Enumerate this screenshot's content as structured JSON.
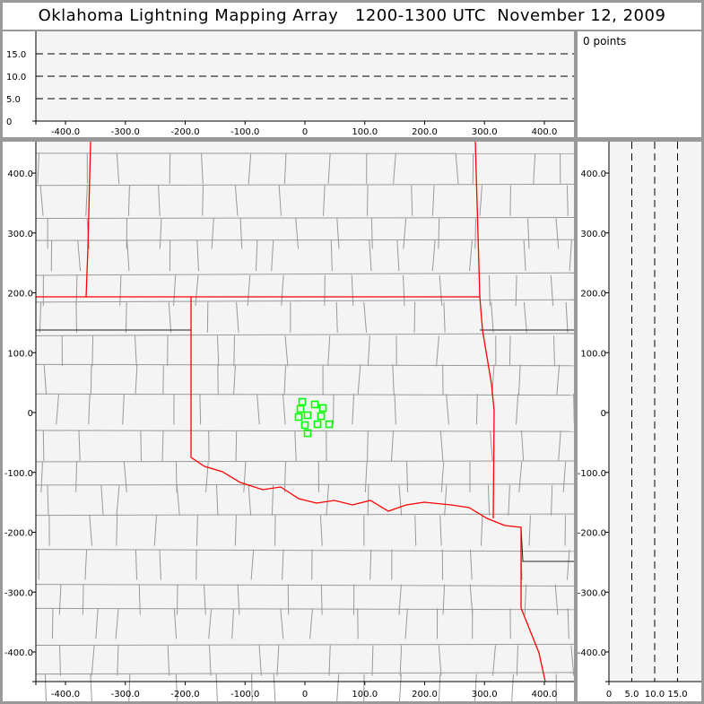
{
  "title": "Oklahoma Lightning Mapping Array   1200-1300 UTC  November 12, 2009",
  "points_label": "0 points",
  "colors": {
    "point": "#00ff00",
    "state_border": "#ff0000",
    "county": "#999999",
    "plot_bg": "#f4f4f4",
    "frame": "#999999"
  },
  "chart_data": [
    {
      "id": "alt-vs-x",
      "type": "scatter",
      "xlim": [
        -450,
        450
      ],
      "ylim": [
        0,
        20
      ],
      "xticks": [
        "-400.0",
        "-300.0",
        "-200.0",
        "-100.0",
        "0",
        "100.0",
        "200.0",
        "300.0",
        "400.0"
      ],
      "yticks": [
        "0",
        "5.0",
        "10.0",
        "15.0"
      ],
      "grid": "dashed at 5, 10, 15",
      "points": []
    },
    {
      "id": "plan-view",
      "type": "scatter",
      "xlim": [
        -450,
        450
      ],
      "ylim": [
        -450,
        450
      ],
      "xticks": [
        "-400.0",
        "-300.0",
        "-200.0",
        "-100.0",
        "0",
        "100.0",
        "200.0",
        "300.0",
        "400.0"
      ],
      "yticks": [
        "-400.0",
        "-300.0",
        "-200.0",
        "-100.0",
        "0",
        "100.0",
        "200.0",
        "300.0",
        "400.0"
      ],
      "background": "county map with state borders",
      "points": [
        [
          -4.5,
          18
        ],
        [
          16.5,
          13.5
        ],
        [
          30,
          7.5
        ],
        [
          -7.5,
          6
        ],
        [
          4.5,
          -4.5
        ],
        [
          -10.5,
          -7.5
        ],
        [
          27,
          -6
        ],
        [
          0,
          -21
        ],
        [
          21,
          -19.5
        ],
        [
          40.5,
          -19.5
        ],
        [
          4.5,
          -34.5
        ]
      ]
    },
    {
      "id": "y-vs-alt",
      "type": "scatter",
      "xlim": [
        0,
        20
      ],
      "ylim": [
        -450,
        450
      ],
      "xticks": [
        "0",
        "5.0",
        "10.0",
        "15.0"
      ],
      "yticks": [
        "-400.0",
        "-300.0",
        "-200.0",
        "-100.0",
        "0",
        "100.0",
        "200.0",
        "300.0",
        "400.0"
      ],
      "grid": "dashed at 5, 10, 15",
      "points": []
    }
  ]
}
